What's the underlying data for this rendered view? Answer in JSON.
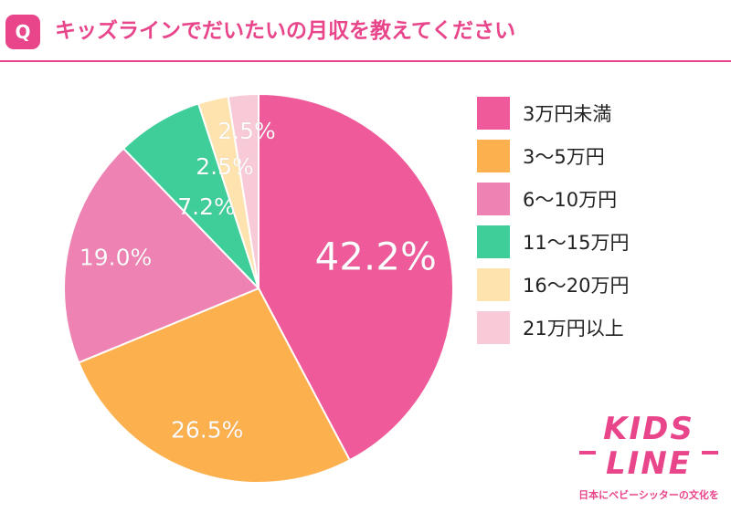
{
  "header": {
    "badge": "Q",
    "question": "キッズラインでだいたいの月収を教えてください"
  },
  "colors": {
    "accent": "#E8458B"
  },
  "chart_data": {
    "type": "pie",
    "title": "",
    "slices": [
      {
        "label": "3万円未満",
        "value": 42.2,
        "display": "42.2%",
        "color": "#EE5A9A"
      },
      {
        "label": "3〜5万円",
        "value": 26.5,
        "display": "26.5%",
        "color": "#FDB04E"
      },
      {
        "label": "6〜10万円",
        "value": 19.0,
        "display": "19.0%",
        "color": "#EE82B2"
      },
      {
        "label": "11〜15万円",
        "value": 7.2,
        "display": "7.2%",
        "color": "#3FCE99"
      },
      {
        "label": "16〜20万円",
        "value": 2.5,
        "display": "2.5%",
        "color": "#FEE3AE"
      },
      {
        "label": "21万円以上",
        "value": 2.5,
        "display": "2.5%",
        "color": "#F8C9D7"
      }
    ],
    "legend_position": "right"
  },
  "logo": {
    "line1": "KIDS",
    "line2": "LINE",
    "tagline": "日本にベビーシッターの文化を"
  }
}
